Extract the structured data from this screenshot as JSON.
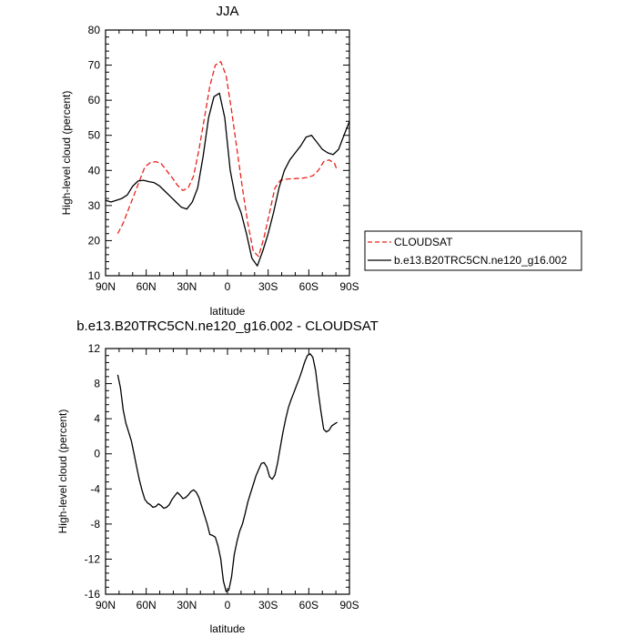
{
  "chart_data": [
    {
      "type": "line",
      "title": "JJA",
      "xlabel": "latitude",
      "ylabel": "High-level cloud (percent)",
      "xlim": [
        90,
        -90
      ],
      "ylim": [
        10,
        80
      ],
      "x_ticks": [
        90,
        60,
        30,
        0,
        -30,
        -60,
        -90
      ],
      "x_tick_labels": [
        "90N",
        "60N",
        "30N",
        "0",
        "30S",
        "60S",
        "90S"
      ],
      "y_ticks": [
        10,
        20,
        30,
        40,
        50,
        60,
        70,
        80
      ],
      "y_tick_labels": [
        "10",
        "20",
        "30",
        "40",
        "50",
        "60",
        "70",
        "80"
      ],
      "legend_position": "right",
      "series": [
        {
          "name": "CLOUDSAT",
          "color": "#e8231c",
          "dash": "dashed",
          "x": [
            81,
            77,
            73,
            69,
            65,
            61,
            57,
            53,
            49,
            45,
            41,
            37,
            33,
            29,
            25,
            21,
            17,
            13,
            9,
            5,
            1,
            -3,
            -7,
            -11,
            -15,
            -19,
            -23,
            -27,
            -31,
            -35,
            -39,
            -43,
            -47,
            -51,
            -55,
            -59,
            -63,
            -67,
            -71,
            -75,
            -79,
            -81
          ],
          "y": [
            22,
            25,
            29,
            33,
            37,
            41,
            42.2,
            42.5,
            42,
            40,
            38,
            35.8,
            34.3,
            35,
            38.5,
            46,
            55,
            64,
            70,
            71,
            67,
            57,
            46,
            35,
            25,
            17,
            15.5,
            21,
            28,
            35,
            37.2,
            37.5,
            37.6,
            37.7,
            37.8,
            38,
            38.5,
            40,
            42.5,
            43,
            42,
            40
          ]
        },
        {
          "name": "b.e13.B20TRC5CN.ne120_g16.002",
          "color": "#000000",
          "dash": "solid",
          "x": [
            90,
            86,
            82,
            78,
            74,
            70,
            66,
            62,
            58,
            54,
            50,
            46,
            42,
            38,
            34,
            30,
            26,
            22,
            18,
            14,
            10,
            6,
            2,
            -2,
            -6,
            -10,
            -14,
            -18,
            -22,
            -26,
            -30,
            -34,
            -38,
            -42,
            -46,
            -50,
            -54,
            -58,
            -62,
            -66,
            -70,
            -74,
            -78,
            -82,
            -86,
            -90
          ],
          "y": [
            31.5,
            31,
            31.5,
            32,
            33,
            35.5,
            37,
            37.2,
            36.8,
            36.5,
            35.5,
            34,
            32.5,
            31,
            29.5,
            29,
            31,
            35,
            44,
            55,
            61,
            62,
            55,
            40,
            32,
            28,
            22,
            15,
            12.8,
            17,
            22,
            28,
            35,
            40,
            43,
            45,
            47,
            49.5,
            50,
            48,
            46,
            45,
            44.5,
            46,
            50,
            54
          ]
        }
      ]
    },
    {
      "type": "line",
      "title": "b.e13.B20TRC5CN.ne120_g16.002 - CLOUDSAT",
      "xlabel": "latitude",
      "ylabel": "High-level cloud (percent)",
      "xlim": [
        90,
        -90
      ],
      "ylim": [
        -16,
        12
      ],
      "x_ticks": [
        90,
        60,
        30,
        0,
        -30,
        -60,
        -90
      ],
      "x_tick_labels": [
        "90N",
        "60N",
        "30N",
        "0",
        "30S",
        "60S",
        "90S"
      ],
      "y_ticks": [
        -16,
        -12,
        -8,
        -4,
        0,
        4,
        8,
        12
      ],
      "y_tick_labels": [
        "-16",
        "-12",
        "-8",
        "-4",
        "0",
        "4",
        "8",
        "12"
      ],
      "series": [
        {
          "color": "#000000",
          "dash": "solid",
          "x": [
            81,
            79,
            77,
            75,
            73,
            71,
            69,
            67,
            65,
            63,
            61,
            59,
            57,
            55,
            53,
            51,
            49,
            47,
            45,
            43,
            41,
            39,
            37,
            35,
            33,
            31,
            29,
            27,
            25,
            23,
            21,
            19,
            17,
            15,
            13,
            11,
            9,
            7,
            5,
            3,
            1,
            -1,
            -3,
            -5,
            -7,
            -9,
            -11,
            -13,
            -15,
            -17,
            -19,
            -21,
            -23,
            -25,
            -27,
            -29,
            -31,
            -33,
            -35,
            -37,
            -39,
            -41,
            -43,
            -45,
            -47,
            -49,
            -51,
            -53,
            -55,
            -57,
            -59,
            -61,
            -63,
            -65,
            -67,
            -69,
            -71,
            -73,
            -75,
            -77,
            -79,
            -81
          ],
          "y": [
            9,
            7.5,
            5,
            3.5,
            2.5,
            1.5,
            0,
            -1.5,
            -3,
            -4.2,
            -5.2,
            -5.6,
            -5.8,
            -6.1,
            -6,
            -5.7,
            -5.9,
            -6.2,
            -6.1,
            -5.8,
            -5.2,
            -4.8,
            -4.4,
            -4.7,
            -5.1,
            -5,
            -4.7,
            -4.3,
            -4.1,
            -4.4,
            -5,
            -6,
            -7,
            -8,
            -9.2,
            -9.3,
            -9.5,
            -10.5,
            -12,
            -14.5,
            -15.7,
            -15.5,
            -14,
            -11.5,
            -10,
            -8.8,
            -8,
            -6.8,
            -5.5,
            -4.5,
            -3.5,
            -2.5,
            -1.8,
            -1.1,
            -1,
            -1.5,
            -2.6,
            -2.9,
            -2.4,
            -1,
            0.8,
            2.5,
            4,
            5.3,
            6.2,
            7,
            7.8,
            8.6,
            9.5,
            10.5,
            11.2,
            11.4,
            11,
            9.5,
            7,
            4.8,
            2.8,
            2.5,
            2.7,
            3.2,
            3.4,
            3.6
          ]
        }
      ]
    }
  ]
}
